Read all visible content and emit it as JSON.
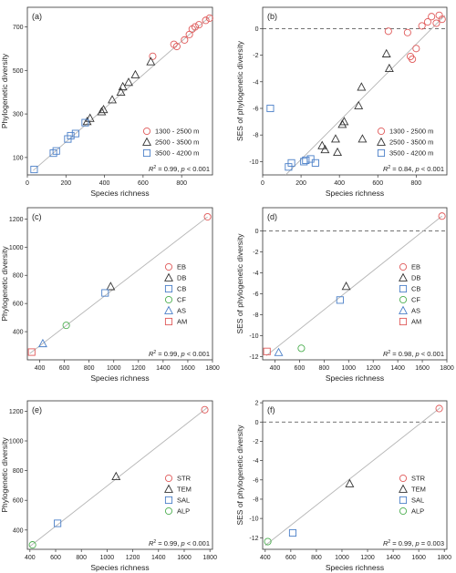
{
  "chart_data": [
    {
      "type": "scatter",
      "panel_label": "(a)",
      "xlabel": "Species richness",
      "ylabel": "Phylogenetic diversity",
      "xlim": [
        0,
        960
      ],
      "ylim": [
        20,
        790
      ],
      "xticks": [
        0,
        200,
        400,
        600,
        800
      ],
      "yticks": [
        100,
        300,
        500,
        700
      ],
      "reference_line": "fit",
      "fit": {
        "x0": 30,
        "y0": 40,
        "x1": 950,
        "y1": 750
      },
      "stats": {
        "r2": "0.99",
        "p": "p < 0.001"
      },
      "legend_position": "bottom-right",
      "series": [
        {
          "name": "1300 - 2500 m",
          "marker": "circle",
          "color": "#e05a5a",
          "x": [
            650,
            760,
            775,
            815,
            840,
            855,
            870,
            890,
            925,
            945
          ],
          "y": [
            565,
            620,
            610,
            640,
            665,
            690,
            700,
            710,
            730,
            740
          ]
        },
        {
          "name": "2500 - 3500 m",
          "marker": "triangle",
          "color": "#333333",
          "x": [
            310,
            325,
            385,
            395,
            440,
            485,
            495,
            525,
            560,
            640
          ],
          "y": [
            265,
            280,
            310,
            320,
            365,
            400,
            425,
            445,
            480,
            540
          ]
        },
        {
          "name": "3500 - 4200 m",
          "marker": "square",
          "color": "#4a7fc8",
          "x": [
            35,
            135,
            150,
            210,
            225,
            250,
            300
          ],
          "y": [
            45,
            120,
            130,
            185,
            200,
            210,
            260
          ]
        }
      ]
    },
    {
      "type": "scatter",
      "panel_label": "(b)",
      "xlabel": "Species richness",
      "ylabel": "SES of phylogenetic diversity",
      "xlim": [
        0,
        960
      ],
      "ylim": [
        -11,
        1.6
      ],
      "xticks": [
        0,
        200,
        400,
        600,
        800
      ],
      "yticks": [
        -10,
        -8,
        -6,
        -4,
        -2,
        0
      ],
      "reference_line": "fit",
      "fit": {
        "x0": 120,
        "y0": -11,
        "x1": 950,
        "y1": 1
      },
      "hline": 0,
      "stats": {
        "r2": "0.84",
        "p": "p < 0.001"
      },
      "legend_position": "bottom-right",
      "series": [
        {
          "name": "1300 - 2500 m",
          "marker": "circle",
          "color": "#e05a5a",
          "x": [
            655,
            755,
            770,
            780,
            800,
            830,
            860,
            880,
            905,
            920,
            935
          ],
          "y": [
            -0.2,
            -0.3,
            -2.1,
            -2.3,
            -1.5,
            0.2,
            0.5,
            0.9,
            0.4,
            1.0,
            0.7
          ]
        },
        {
          "name": "2500 - 3500 m",
          "marker": "triangle",
          "color": "#333333",
          "x": [
            310,
            325,
            380,
            390,
            415,
            425,
            500,
            515,
            520,
            645,
            660
          ],
          "y": [
            -8.8,
            -9.1,
            -8.3,
            -9.3,
            -7.2,
            -7.0,
            -5.8,
            -4.4,
            -8.3,
            -1.9,
            -3.0
          ]
        },
        {
          "name": "3500 - 4200 m",
          "marker": "square",
          "color": "#4a7fc8",
          "x": [
            40,
            135,
            150,
            215,
            225,
            250,
            275
          ],
          "y": [
            -6.0,
            -10.4,
            -10.1,
            -10.0,
            -9.9,
            -9.8,
            -10.1
          ]
        }
      ]
    },
    {
      "type": "scatter",
      "panel_label": "(c)",
      "xlabel": "Species richness",
      "ylabel": "Phylogenetic diversity",
      "xlim": [
        300,
        1800
      ],
      "ylim": [
        200,
        1280
      ],
      "xticks": [
        400,
        600,
        800,
        1000,
        1200,
        1400,
        1600,
        1800
      ],
      "yticks": [
        400,
        600,
        800,
        1000,
        1200
      ],
      "reference_line": "fit",
      "fit": {
        "x0": 320,
        "y0": 245,
        "x1": 1760,
        "y1": 1215
      },
      "stats": {
        "r2": "0.99",
        "p": "p < 0.001"
      },
      "legend_position": "right",
      "series": [
        {
          "name": "EB",
          "marker": "circle",
          "color": "#e05a5a",
          "x": [
            1760
          ],
          "y": [
            1215
          ]
        },
        {
          "name": "DB",
          "marker": "triangle",
          "color": "#333333",
          "x": [
            975
          ],
          "y": [
            720
          ]
        },
        {
          "name": "CB",
          "marker": "square",
          "color": "#4a7fc8",
          "x": [
            930
          ],
          "y": [
            675
          ]
        },
        {
          "name": "CF",
          "marker": "circle",
          "color": "#4caf50",
          "x": [
            615
          ],
          "y": [
            445
          ]
        },
        {
          "name": "AS",
          "marker": "triangle",
          "color": "#4a7fc8",
          "x": [
            425
          ],
          "y": [
            315
          ]
        },
        {
          "name": "AM",
          "marker": "square",
          "color": "#e05a5a",
          "x": [
            335
          ],
          "y": [
            255
          ]
        }
      ]
    },
    {
      "type": "scatter",
      "panel_label": "(d)",
      "xlabel": "Species richness",
      "ylabel": "SES of phylogenetic diversity",
      "xlim": [
        300,
        1800
      ],
      "ylim": [
        -12.3,
        2.2
      ],
      "xticks": [
        400,
        600,
        800,
        1000,
        1200,
        1400,
        1600,
        1800
      ],
      "yticks": [
        -12,
        -10,
        -8,
        -6,
        -4,
        -2,
        0
      ],
      "reference_line": "fit",
      "fit": {
        "x0": 330,
        "y0": -11.9,
        "x1": 1760,
        "y1": 1.4
      },
      "hline": 0,
      "stats": {
        "r2": "0.98",
        "p": "p < 0.001"
      },
      "legend_position": "right",
      "series": [
        {
          "name": "EB",
          "marker": "circle",
          "color": "#e05a5a",
          "x": [
            1760
          ],
          "y": [
            1.4
          ]
        },
        {
          "name": "DB",
          "marker": "triangle",
          "color": "#333333",
          "x": [
            980
          ],
          "y": [
            -5.3
          ]
        },
        {
          "name": "CB",
          "marker": "square",
          "color": "#4a7fc8",
          "x": [
            930
          ],
          "y": [
            -6.6
          ]
        },
        {
          "name": "CF",
          "marker": "circle",
          "color": "#4caf50",
          "x": [
            615
          ],
          "y": [
            -11.2
          ]
        },
        {
          "name": "AS",
          "marker": "triangle",
          "color": "#4a7fc8",
          "x": [
            430
          ],
          "y": [
            -11.6
          ]
        },
        {
          "name": "AM",
          "marker": "square",
          "color": "#e05a5a",
          "x": [
            335
          ],
          "y": [
            -11.5
          ]
        }
      ]
    },
    {
      "type": "scatter",
      "panel_label": "(e)",
      "xlabel": "Species richness",
      "ylabel": "Phylogenetic diversity",
      "xlim": [
        380,
        1820
      ],
      "ylim": [
        270,
        1270
      ],
      "xticks": [
        400,
        600,
        800,
        1000,
        1200,
        1400,
        1600,
        1800
      ],
      "yticks": [
        400,
        600,
        800,
        1000,
        1200
      ],
      "reference_line": "fit",
      "fit": {
        "x0": 400,
        "y0": 290,
        "x1": 1780,
        "y1": 1225
      },
      "stats": {
        "r2": "0.99",
        "p": "p < 0.001"
      },
      "legend_position": "right",
      "series": [
        {
          "name": "STR",
          "marker": "circle",
          "color": "#e05a5a",
          "x": [
            1760
          ],
          "y": [
            1210
          ]
        },
        {
          "name": "TEM",
          "marker": "triangle",
          "color": "#333333",
          "x": [
            1070
          ],
          "y": [
            760
          ]
        },
        {
          "name": "SAL",
          "marker": "square",
          "color": "#4a7fc8",
          "x": [
            615
          ],
          "y": [
            445
          ]
        },
        {
          "name": "ALP",
          "marker": "circle",
          "color": "#4caf50",
          "x": [
            420
          ],
          "y": [
            300
          ]
        }
      ]
    },
    {
      "type": "scatter",
      "panel_label": "(f)",
      "xlabel": "Species richness",
      "ylabel": "SES of phylogenetic diversity",
      "xlim": [
        380,
        1820
      ],
      "ylim": [
        -13.2,
        2.2
      ],
      "xticks": [
        400,
        600,
        800,
        1000,
        1200,
        1400,
        1600,
        1800
      ],
      "yticks": [
        -12,
        -10,
        -8,
        -6,
        -4,
        -2,
        0,
        2
      ],
      "reference_line": "fit",
      "fit": {
        "x0": 400,
        "y0": -12.8,
        "x1": 1770,
        "y1": 1.5
      },
      "hline": 0,
      "stats": {
        "r2": "0.99",
        "p": "p = 0.003"
      },
      "legend_position": "right",
      "series": [
        {
          "name": "STR",
          "marker": "circle",
          "color": "#e05a5a",
          "x": [
            1760
          ],
          "y": [
            1.4
          ]
        },
        {
          "name": "TEM",
          "marker": "triangle",
          "color": "#333333",
          "x": [
            1060
          ],
          "y": [
            -6.4
          ]
        },
        {
          "name": "SAL",
          "marker": "square",
          "color": "#4a7fc8",
          "x": [
            615
          ],
          "y": [
            -11.5
          ]
        },
        {
          "name": "ALP",
          "marker": "circle",
          "color": "#4caf50",
          "x": [
            420
          ],
          "y": [
            -12.4
          ]
        }
      ]
    }
  ]
}
